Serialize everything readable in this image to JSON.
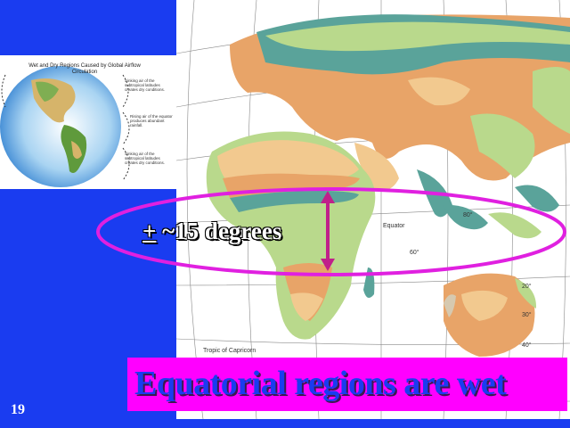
{
  "inset": {
    "title": "Wet and Dry Regions Caused by Global Airflow Circulation",
    "notes": [
      "Sinking air of the subtropical latitudes creates dry conditions.",
      "Rising air of the equator produces abundant rainfall.",
      "Sinking air of the subtropical latitudes creates dry conditions."
    ]
  },
  "map": {
    "equator_label": "Equator",
    "tropic_label": "Tropic of Capricorn",
    "lat_labels": [
      "80°",
      "60°",
      "20°",
      "30°",
      "40°"
    ]
  },
  "band_label": {
    "plus_minus": "+",
    "text": "~15 degrees"
  },
  "caption": "Equatorial regions are wet",
  "page_number": "19",
  "colors": {
    "background": "#1a3cf0",
    "caption_bg": "#ff00ff",
    "ellipse": "#e020e0",
    "arrow": "#c0208a",
    "wet_green": "#b9d98c",
    "teal": "#5aa39a",
    "orange_dry": "#e8a468",
    "light_orange": "#f2c98f"
  }
}
